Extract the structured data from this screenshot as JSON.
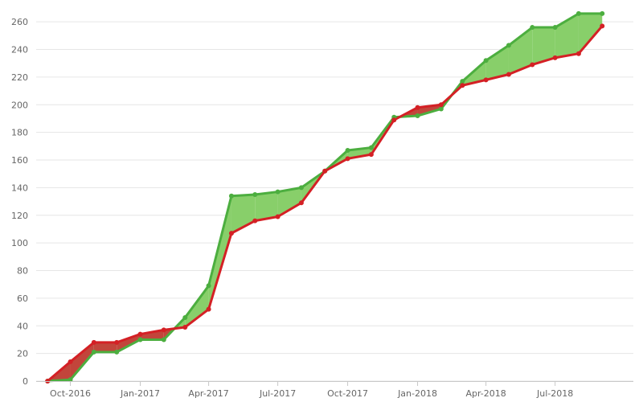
{
  "chart_data": {
    "type": "area",
    "title": "",
    "xlabel": "",
    "ylabel": "",
    "ylim": [
      0,
      270
    ],
    "yticks": [
      0,
      20,
      40,
      60,
      80,
      100,
      120,
      140,
      160,
      180,
      200,
      220,
      240,
      260
    ],
    "xticks": [
      "Oct-2016",
      "Jan-2017",
      "Apr-2017",
      "Jul-2017",
      "Oct-2017",
      "Jan-2018",
      "Apr-2018",
      "Jul-2018"
    ],
    "grid": true,
    "legend": "none",
    "x": [
      "2016-09-01",
      "2016-10-01",
      "2016-11-01",
      "2016-12-01",
      "2017-01-01",
      "2017-02-01",
      "2017-03-01",
      "2017-04-01",
      "2017-05-01",
      "2017-06-01",
      "2017-07-01",
      "2017-08-01",
      "2017-09-01",
      "2017-10-01",
      "2017-11-01",
      "2017-12-01",
      "2018-01-01",
      "2018-02-01",
      "2018-03-01",
      "2018-04-01",
      "2018-05-01",
      "2018-06-01",
      "2018-07-01",
      "2018-08-01",
      "2018-09-01"
    ],
    "series": [
      {
        "color": "#4cae3f",
        "fill": "#88cf6a",
        "values": [
          0,
          1,
          21,
          21,
          30,
          30,
          46,
          69,
          134,
          135,
          137,
          140,
          152,
          167,
          169,
          191,
          192,
          197,
          217,
          232,
          243,
          256,
          256,
          266,
          266
        ]
      },
      {
        "color": "#d42025",
        "fill": "#c2453b",
        "values": [
          0,
          14,
          28,
          28,
          34,
          37,
          39,
          52,
          107,
          116,
          119,
          129,
          152,
          161,
          164,
          189,
          198,
          200,
          214,
          218,
          222,
          229,
          234,
          237,
          257
        ]
      }
    ]
  }
}
